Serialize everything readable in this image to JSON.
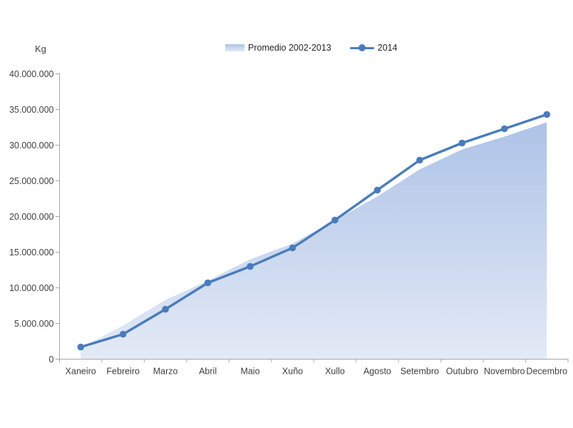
{
  "chart_data": {
    "type": "combo",
    "title": "",
    "ylabel": "Kg",
    "xlabel": "",
    "grid": false,
    "legend_position": "top-center",
    "categories": [
      "Xaneiro",
      "Febreiro",
      "Marzo",
      "Abril",
      "Maio",
      "Xuño",
      "Xullo",
      "Agosto",
      "Setembro",
      "Outubro",
      "Novembro",
      "Decembro"
    ],
    "ylim": [
      0,
      40000000
    ],
    "ytick_step": 5000000,
    "ytick_labels": [
      "0",
      "5.000.000",
      "10.000.000",
      "15.000.000",
      "20.000.000",
      "25.000.000",
      "30.000.000",
      "35.000.000",
      "40.000.000"
    ],
    "series": [
      {
        "name": "Promedio 2002-2013",
        "type": "area",
        "color_top": "#aec3e7",
        "color_bottom": "#e3eaf6",
        "values": [
          1600000,
          4700000,
          8300000,
          11000000,
          14000000,
          16200000,
          19500000,
          22800000,
          26600000,
          29400000,
          31200000,
          33200000
        ]
      },
      {
        "name": "2014",
        "type": "line",
        "color": "#4a7cba",
        "values": [
          1700000,
          3500000,
          7000000,
          10700000,
          13000000,
          15600000,
          19500000,
          23700000,
          27900000,
          30300000,
          32300000,
          34300000
        ]
      }
    ],
    "colors": {
      "axis_line": "#a6a6a6",
      "tick_text": "#404040",
      "background": "#ffffff"
    }
  }
}
